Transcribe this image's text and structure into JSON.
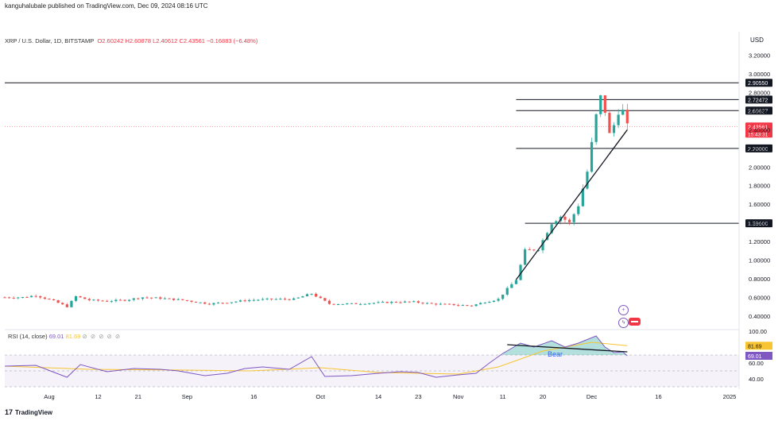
{
  "header": {
    "publisher": "kanguhalubale published on TradingView.com, Dec 09, 2024 08:16 UTC",
    "symbol": "XRP / U.S. Dollar, 1D, BITSTAMP",
    "ohlc": "O2.60242  H2.60878  L2.40612  C2.43561  −0.16883 (−6.48%)",
    "currency": "USD"
  },
  "rsi_legend": {
    "label": "RSI (14, close)",
    "rsi": "69.01",
    "ma": "81.69",
    "icons": "⊘ ⊘ ⊘ ⊘ ⊘"
  },
  "branding": {
    "logo": "TradingView"
  },
  "colors": {
    "up": "#26a69a",
    "down": "#ef5350",
    "rsi_line": "#7e57c2",
    "rsi_ma": "#f7c531",
    "hline": "#131722"
  },
  "chart_data": [
    {
      "type": "candlestick",
      "title": "XRP / U.S. Dollar, 1D, BITSTAMP",
      "ylabel": "USD",
      "ylim": [
        0.27,
        3.3
      ],
      "y_ticks": [
        "3.20000",
        "3.00000",
        "2.80000",
        "2.60000",
        "2.40000",
        "2.20000",
        "2.00000",
        "1.80000",
        "1.60000",
        "1.40000",
        "1.20000",
        "1.00000",
        "0.80000",
        "0.60000",
        "0.40000"
      ],
      "x_ticks": [
        {
          "label": "Aug",
          "date": "2024-08-01"
        },
        {
          "label": "12",
          "date": "2024-08-12"
        },
        {
          "label": "21",
          "date": "2024-08-21"
        },
        {
          "label": "Sep",
          "date": "2024-09-01"
        },
        {
          "label": "16",
          "date": "2024-09-16"
        },
        {
          "label": "Oct",
          "date": "2024-10-01"
        },
        {
          "label": "14",
          "date": "2024-10-14"
        },
        {
          "label": "23",
          "date": "2024-10-23"
        },
        {
          "label": "Nov",
          "date": "2024-11-01"
        },
        {
          "label": "11",
          "date": "2024-11-11"
        },
        {
          "label": "20",
          "date": "2024-11-20"
        },
        {
          "label": "Dec",
          "date": "2024-12-01"
        },
        {
          "label": "16",
          "date": "2024-12-16"
        },
        {
          "label": "2025",
          "date": "2025-01-01"
        }
      ],
      "x_range": [
        "2024-07-22",
        "2025-01-01"
      ],
      "horizontal_levels": [
        "2.90550",
        "2.72472",
        "2.60627",
        "2.20000",
        "1.39600"
      ],
      "current_price": {
        "value": "2.43561",
        "countdown": "15:43:31"
      },
      "closes": [
        {
          "date": "2024-07-22",
          "value": 0.6
        },
        {
          "date": "2024-07-26",
          "value": 0.6
        },
        {
          "date": "2024-07-29",
          "value": 0.62
        },
        {
          "date": "2024-08-02",
          "value": 0.56
        },
        {
          "date": "2024-08-05",
          "value": 0.5
        },
        {
          "date": "2024-08-07",
          "value": 0.61
        },
        {
          "date": "2024-08-10",
          "value": 0.57
        },
        {
          "date": "2024-08-14",
          "value": 0.56
        },
        {
          "date": "2024-08-18",
          "value": 0.57
        },
        {
          "date": "2024-08-22",
          "value": 0.6
        },
        {
          "date": "2024-08-26",
          "value": 0.59
        },
        {
          "date": "2024-08-31",
          "value": 0.57
        },
        {
          "date": "2024-09-06",
          "value": 0.53
        },
        {
          "date": "2024-09-11",
          "value": 0.55
        },
        {
          "date": "2024-09-15",
          "value": 0.57
        },
        {
          "date": "2024-09-20",
          "value": 0.58
        },
        {
          "date": "2024-09-25",
          "value": 0.58
        },
        {
          "date": "2024-09-29",
          "value": 0.64
        },
        {
          "date": "2024-10-03",
          "value": 0.53
        },
        {
          "date": "2024-10-08",
          "value": 0.53
        },
        {
          "date": "2024-10-13",
          "value": 0.54
        },
        {
          "date": "2024-10-18",
          "value": 0.55
        },
        {
          "date": "2024-10-22",
          "value": 0.55
        },
        {
          "date": "2024-10-26",
          "value": 0.53
        },
        {
          "date": "2024-10-31",
          "value": 0.52
        },
        {
          "date": "2024-11-04",
          "value": 0.51
        },
        {
          "date": "2024-11-07",
          "value": 0.55
        },
        {
          "date": "2024-11-10",
          "value": 0.58
        },
        {
          "date": "2024-11-12",
          "value": 0.69
        },
        {
          "date": "2024-11-14",
          "value": 0.79
        },
        {
          "date": "2024-11-16",
          "value": 1.1
        },
        {
          "date": "2024-11-19",
          "value": 1.12
        },
        {
          "date": "2024-11-22",
          "value": 1.4
        },
        {
          "date": "2024-11-24",
          "value": 1.47
        },
        {
          "date": "2024-11-26",
          "value": 1.4
        },
        {
          "date": "2024-11-28",
          "value": 1.59
        },
        {
          "date": "2024-11-30",
          "value": 1.95
        },
        {
          "date": "2024-12-02",
          "value": 2.55
        },
        {
          "date": "2024-12-03",
          "value": 2.75
        },
        {
          "date": "2024-12-04",
          "value": 2.6
        },
        {
          "date": "2024-12-05",
          "value": 2.35
        },
        {
          "date": "2024-12-06",
          "value": 2.45
        },
        {
          "date": "2024-12-07",
          "value": 2.6
        },
        {
          "date": "2024-12-08",
          "value": 2.6
        },
        {
          "date": "2024-12-09",
          "value": 2.43561
        }
      ],
      "annotations": [
        {
          "type": "trendline",
          "from": {
            "date": "2024-11-14",
            "value": 0.79
          },
          "to": {
            "date": "2024-12-09",
            "value": 2.4
          }
        }
      ]
    },
    {
      "type": "line",
      "title": "RSI (14, close)",
      "ylim": [
        30,
        100
      ],
      "y_ticks": [
        "100.00",
        "60.00",
        "40.00"
      ],
      "band": [
        30,
        70
      ],
      "series": [
        {
          "name": "RSI",
          "points": [
            {
              "date": "2024-07-22",
              "value": 56
            },
            {
              "date": "2024-07-29",
              "value": 57
            },
            {
              "date": "2024-08-05",
              "value": 42
            },
            {
              "date": "2024-08-08",
              "value": 58
            },
            {
              "date": "2024-08-14",
              "value": 49
            },
            {
              "date": "2024-08-20",
              "value": 53
            },
            {
              "date": "2024-08-26",
              "value": 52
            },
            {
              "date": "2024-08-30",
              "value": 50
            },
            {
              "date": "2024-09-05",
              "value": 44
            },
            {
              "date": "2024-09-10",
              "value": 47
            },
            {
              "date": "2024-09-14",
              "value": 53
            },
            {
              "date": "2024-09-18",
              "value": 55
            },
            {
              "date": "2024-09-24",
              "value": 52
            },
            {
              "date": "2024-09-29",
              "value": 68
            },
            {
              "date": "2024-10-02",
              "value": 43
            },
            {
              "date": "2024-10-08",
              "value": 44
            },
            {
              "date": "2024-10-14",
              "value": 47
            },
            {
              "date": "2024-10-19",
              "value": 49
            },
            {
              "date": "2024-10-23",
              "value": 48
            },
            {
              "date": "2024-10-27",
              "value": 42
            },
            {
              "date": "2024-11-01",
              "value": 45
            },
            {
              "date": "2024-11-05",
              "value": 47
            },
            {
              "date": "2024-11-08",
              "value": 60
            },
            {
              "date": "2024-11-11",
              "value": 72
            },
            {
              "date": "2024-11-15",
              "value": 85
            },
            {
              "date": "2024-11-18",
              "value": 80
            },
            {
              "date": "2024-11-22",
              "value": 88
            },
            {
              "date": "2024-11-25",
              "value": 80
            },
            {
              "date": "2024-11-28",
              "value": 85
            },
            {
              "date": "2024-12-02",
              "value": 94
            },
            {
              "date": "2024-12-04",
              "value": 80
            },
            {
              "date": "2024-12-06",
              "value": 73
            },
            {
              "date": "2024-12-08",
              "value": 74
            },
            {
              "date": "2024-12-09",
              "value": 69
            }
          ]
        },
        {
          "name": "RSI-based MA",
          "points": [
            {
              "date": "2024-07-22",
              "value": 56
            },
            {
              "date": "2024-08-10",
              "value": 52
            },
            {
              "date": "2024-09-01",
              "value": 51
            },
            {
              "date": "2024-09-15",
              "value": 50
            },
            {
              "date": "2024-10-01",
              "value": 54
            },
            {
              "date": "2024-10-14",
              "value": 48
            },
            {
              "date": "2024-11-01",
              "value": 46
            },
            {
              "date": "2024-11-10",
              "value": 55
            },
            {
              "date": "2024-11-20",
              "value": 75
            },
            {
              "date": "2024-12-01",
              "value": 86
            },
            {
              "date": "2024-12-09",
              "value": 81.69
            }
          ]
        }
      ],
      "annotations": [
        {
          "type": "trendline",
          "label": "Bear",
          "from": {
            "date": "2024-11-12",
            "value": 83
          },
          "to": {
            "date": "2024-12-09",
            "value": 74
          }
        }
      ]
    }
  ]
}
